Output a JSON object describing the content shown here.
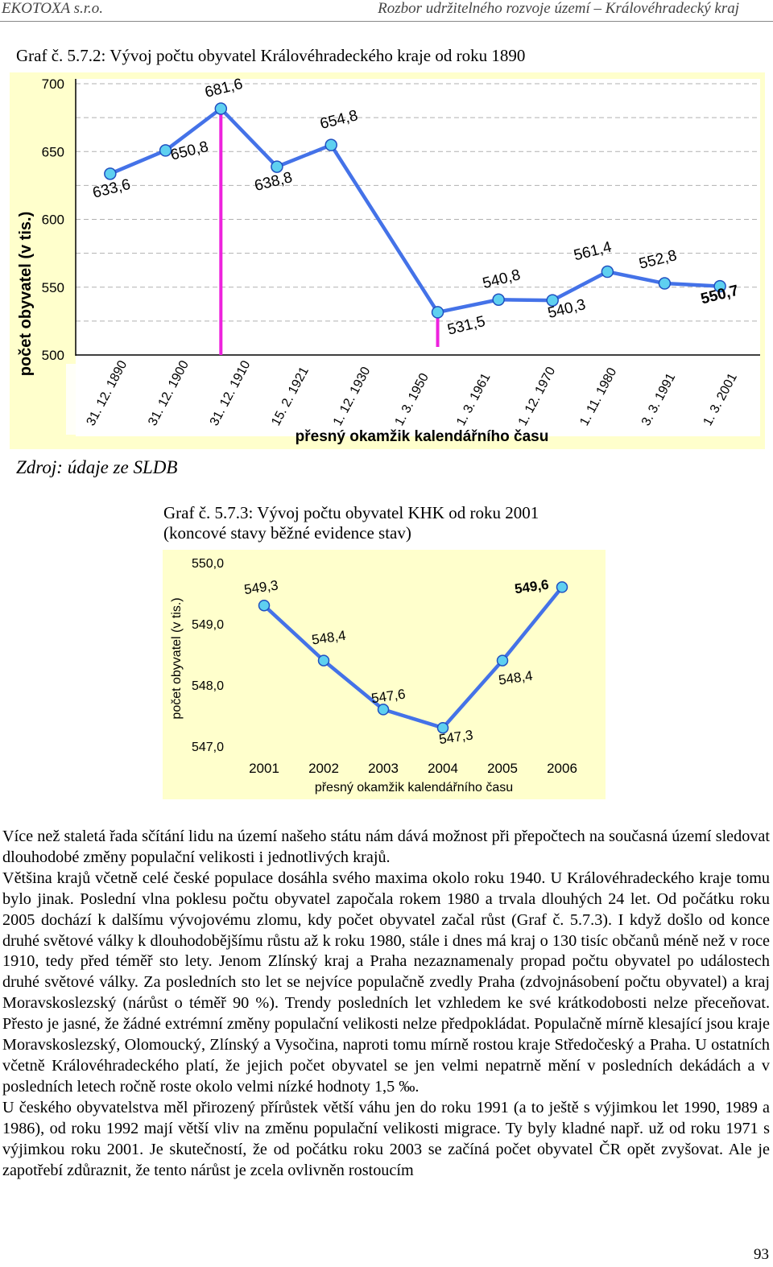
{
  "header": {
    "left": "EKOTOXA s.r.o.",
    "right": "Rozbor udržitelného rozvoje území – Královéhradecký kraj"
  },
  "chart1_caption": "Graf č. 5.7.2: Vývoj počtu obyvatel Královéhradeckého kraje od roku 1890",
  "source": "Zdroj: údaje ze SLDB",
  "chart2_caption_line1": "Graf č. 5.7.3: Vývoj počtu obyvatel KHK od roku 2001",
  "chart2_caption_line2": "(koncové stavy běžné evidence stav)",
  "chart_data": [
    {
      "type": "line",
      "ylabel": "počet obyvatel (v tis.)",
      "xlabel": "přesný okamžik kalendářního času",
      "ylim": [
        500,
        700
      ],
      "yticks": [
        "700",
        "650",
        "600",
        "550",
        "500"
      ],
      "grid": true,
      "categories": [
        "31. 12. 1890",
        "31. 12. 1900",
        "31. 12. 1910",
        "15. 2. 1921",
        "1. 12. 1930",
        "1. 3. 1950",
        "1. 3. 1961",
        "1. 12. 1970",
        "1. 11. 1980",
        "3. 3. 1991",
        "1. 3. 2001"
      ],
      "series": [
        {
          "x": [
            "1890-12-31",
            "1900-12-31",
            "1910-12-31",
            "1921-02-15",
            "1930-12-01",
            "1950-03-01",
            "1961-03-01",
            "1970-12-01",
            "1980-11-01",
            "1991-03-03",
            "2001-03-01"
          ],
          "values": [
            633.6,
            650.8,
            681.6,
            638.8,
            654.8,
            531.5,
            540.8,
            540.3,
            561.4,
            552.8,
            550.7
          ],
          "labels": [
            "633,6",
            "650,8",
            "681,6",
            "638,8",
            "654,8",
            "531,5",
            "540,8",
            "540,3",
            "561,4",
            "552,8",
            "550,7"
          ]
        }
      ],
      "highlight_marker_date": "1910-12-31",
      "colors": {
        "line": "#4472e8",
        "marker_fill": "#5ed0f0",
        "highlight": "#ee22dd",
        "plot_bg": "#ffffff",
        "frame_bg": "#ffffcc",
        "frame_border": "#f5e9a8"
      }
    },
    {
      "type": "line",
      "ylabel": "počet obyvatel (v tis.)",
      "xlabel": "přesný okamžik kalendářního času",
      "ylim": [
        547.0,
        550.0
      ],
      "yticks": [
        "550,0",
        "549,0",
        "548,0",
        "547,0"
      ],
      "categories": [
        "2001",
        "2002",
        "2003",
        "2004",
        "2005",
        "2006"
      ],
      "series": [
        {
          "x": [
            2001,
            2002,
            2003,
            2004,
            2005,
            2006
          ],
          "values": [
            549.3,
            548.4,
            547.6,
            547.3,
            548.4,
            549.6
          ],
          "labels": [
            "549,3",
            "548,4",
            "547,6",
            "547,3",
            "548,4",
            "549,6"
          ]
        }
      ],
      "colors": {
        "line": "#4472e8",
        "marker_fill": "#5ed0f0",
        "frame_bg": "#ffffcc"
      }
    }
  ],
  "paragraphs": [
    "Více než staletá řada sčítání lidu na území našeho státu nám dává možnost při přepočtech na současná území sledovat dlouhodobé změny populační velikosti i jednotlivých krajů.",
    "Většina krajů včetně celé české populace dosáhla svého maxima okolo roku 1940. U Královéhradeckého kraje tomu bylo jinak. Poslední vlna poklesu počtu obyvatel započala rokem 1980 a trvala dlouhých 24 let. Od počátku roku 2005 dochází k dalšímu vývojovému zlomu, kdy počet obyvatel začal růst (Graf č. 5.7.3). I když došlo od konce druhé světové války k dlouhodobějšímu růstu až k roku 1980, stále i dnes má kraj o 130 tisíc občanů méně než v roce 1910, tedy před téměř sto lety. Jenom Zlínský kraj a Praha nezaznamenaly propad počtu obyvatel po událostech druhé světové války. Za posledních sto let se nejvíce populačně zvedly Praha (zdvojnásobení počtu obyvatel) a kraj Moravskoslezský (nárůst o téměř 90 %). Trendy posledních let vzhledem ke své krátkodobosti nelze přeceňovat. Přesto je jasné, že žádné extrémní změny populační velikosti nelze předpokládat. Populačně mírně klesající jsou kraje Moravskoslezský, Olomoucký, Zlínský a Vysočina, naproti tomu mírně rostou kraje Středočeský a Praha. U ostatních včetně Královéhradeckého platí, že jejich počet obyvatel se jen velmi nepatrně mění v posledních dekádách a v posledních letech ročně roste okolo velmi nízké hodnoty 1,5 ‰.",
    "U českého obyvatelstva měl přirozený přírůstek větší váhu jen do roku 1991 (a to ještě s výjimkou let 1990, 1989 a 1986), od roku 1992 mají větší vliv na změnu populační velikosti migrace. Ty byly kladné např. už od roku 1971 s výjimkou roku 2001. Je skutečností, že od počátku roku 2003 se začíná počet obyvatel ČR opět zvyšovat. Ale je zapotřebí zdůraznit, že tento nárůst je zcela ovlivněn rostoucím"
  ],
  "page_number": "93"
}
